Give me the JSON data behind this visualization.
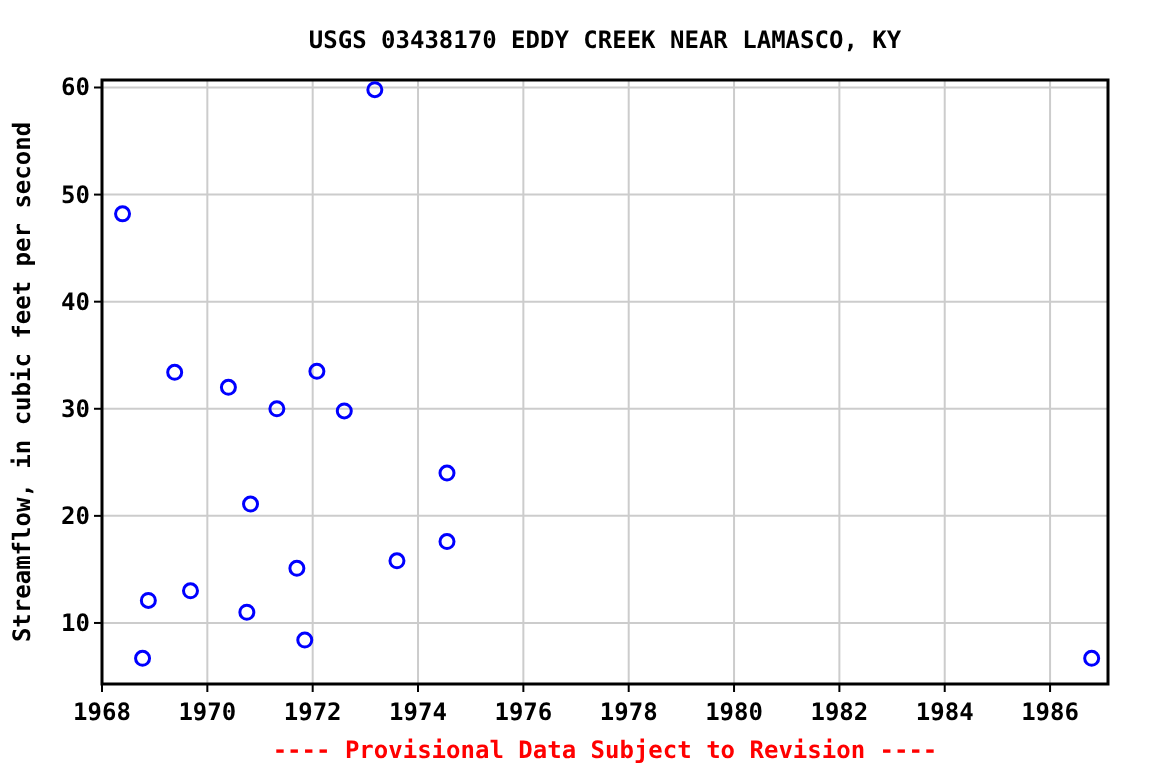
{
  "chart_data": {
    "type": "scatter",
    "title": "USGS 03438170 EDDY CREEK NEAR LAMASCO, KY",
    "ylabel": "Streamflow, in cubic feet per second",
    "annotations": [
      "---- Provisional Data Subject to Revision ----"
    ],
    "x": [
      1968.39,
      1968.77,
      1968.88,
      1969.38,
      1969.68,
      1970.4,
      1970.75,
      1970.82,
      1971.32,
      1971.7,
      1971.85,
      1972.08,
      1972.6,
      1973.18,
      1973.6,
      1974.55,
      1974.55,
      1986.79
    ],
    "series": [
      {
        "color": "#0000ff",
        "values": [
          48.2,
          6.7,
          12.1,
          33.4,
          13.0,
          32.0,
          11.0,
          21.1,
          30.0,
          15.1,
          8.4,
          33.5,
          29.8,
          59.8,
          15.8,
          24.0,
          17.6,
          6.7
        ]
      }
    ],
    "xlim": [
      1968,
      1987.1
    ],
    "xticks": [
      1968,
      1970,
      1972,
      1974,
      1976,
      1978,
      1980,
      1982,
      1984,
      1986
    ],
    "ylim": [
      4.3,
      60.7
    ],
    "yticks": [
      10,
      20,
      30,
      40,
      50,
      60
    ],
    "grid": true,
    "marker": "circle"
  }
}
